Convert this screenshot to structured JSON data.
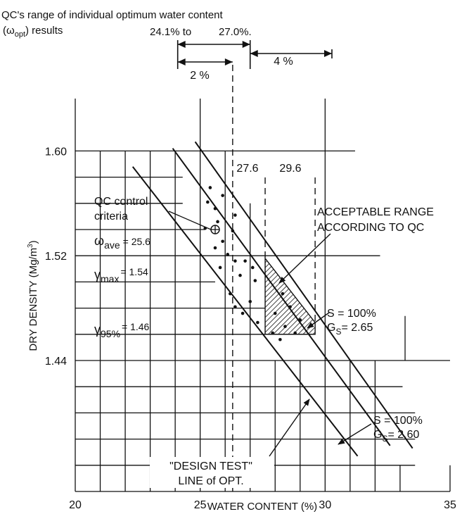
{
  "chart_data": {
    "type": "scatter",
    "title": "",
    "xlabel": "WATER CONTENT (%)",
    "ylabel": "DRY DENSITY (Mg/m³)",
    "ylabel_parts": {
      "main": "DRY DENSITY (Mg/m",
      "sup": "3",
      "end": ")"
    },
    "xlim": [
      20,
      35
    ],
    "ylim": [
      1.34,
      1.64
    ],
    "x_ticks": [
      20,
      25,
      30,
      35
    ],
    "x_tick_labels": [
      "20",
      "25",
      "30",
      "35"
    ],
    "y_ticks": [
      1.44,
      1.52,
      1.6
    ],
    "y_tick_labels": [
      "1.44",
      "1.52",
      "1.60"
    ],
    "grid": true,
    "points": [
      [
        25.4,
        1.572
      ],
      [
        25.9,
        1.566
      ],
      [
        25.3,
        1.561
      ],
      [
        25.6,
        1.556
      ],
      [
        26.4,
        1.551
      ],
      [
        25.7,
        1.546
      ],
      [
        25.2,
        1.541
      ],
      [
        26.3,
        1.539
      ],
      [
        25.9,
        1.531
      ],
      [
        25.6,
        1.526
      ],
      [
        26.1,
        1.521
      ],
      [
        26.4,
        1.516
      ],
      [
        26.8,
        1.516
      ],
      [
        27.1,
        1.511
      ],
      [
        25.8,
        1.511
      ],
      [
        26.6,
        1.505
      ],
      [
        27.2,
        1.501
      ],
      [
        26.2,
        1.491
      ],
      [
        27.0,
        1.485
      ],
      [
        26.4,
        1.481
      ],
      [
        26.7,
        1.476
      ],
      [
        27.3,
        1.469
      ],
      [
        28.3,
        1.491
      ],
      [
        28.6,
        1.481
      ],
      [
        28.0,
        1.476
      ],
      [
        29.0,
        1.471
      ],
      [
        28.4,
        1.466
      ],
      [
        28.8,
        1.461
      ],
      [
        27.9,
        1.461
      ],
      [
        28.2,
        1.456
      ]
    ],
    "qc_point": [
      25.6,
      1.54
    ],
    "lines": [
      {
        "name": "\"DESIGN TEST\" LINE of OPT.",
        "from": [
          22.3,
          1.588
        ],
        "to": [
          31.3,
          1.367
        ]
      },
      {
        "name": "S = 100% GS = 2.65",
        "from": [
          23.9,
          1.602
        ],
        "to": [
          32.6,
          1.375
        ]
      },
      {
        "name": "S = 100% GS = 2.60",
        "from": [
          24.8,
          1.607
        ],
        "to": [
          33.5,
          1.373
        ]
      }
    ],
    "acceptable_range": {
      "w_min": 27.6,
      "w_max": 29.6,
      "gamma_min": 1.46,
      "vertices": [
        [
          27.6,
          1.518
        ],
        [
          27.6,
          1.46
        ],
        [
          29.6,
          1.46
        ],
        [
          29.6,
          1.469
        ]
      ]
    },
    "range_markers": {
      "w_low": 24.1,
      "w_high": 27.0,
      "dashed_x": 26.3
    },
    "annotations": {
      "top_title_line1": "QC's range of individual optimum water content",
      "top_title_omega": "(ω",
      "top_title_opt": "opt",
      "top_title_end": ") results",
      "range_low": "24.1% to",
      "range_high": "27.0%.",
      "two_percent": "2 %",
      "four_percent": "4 %",
      "v276": "27.6",
      "v296": "29.6",
      "qc_control_1": "QC control",
      "qc_control_2": "criteria",
      "omega_sym": "ω",
      "omega_sub": "ave",
      "omega_val": "= 25.6",
      "gmax_sym": "γ",
      "gmax_sub": "max",
      "gmax_val": "= 1.54",
      "g95_sym": "γ",
      "g95_sub": "95%",
      "g95_val": "= 1.46",
      "acceptable_1": "ACCEPTABLE RANGE",
      "acceptable_2": "ACCORDING TO QC",
      "s265_1": "S  = 100%",
      "s265_g": "G",
      "s265_gs": "S",
      "s265_2": "= 2.65",
      "s260_1": "S  = 100%",
      "s260_g": "G",
      "s260_gs": "S",
      "s260_2": "= 2.60",
      "design_1": "\"DESIGN TEST\"",
      "design_2": "LINE of OPT."
    }
  }
}
